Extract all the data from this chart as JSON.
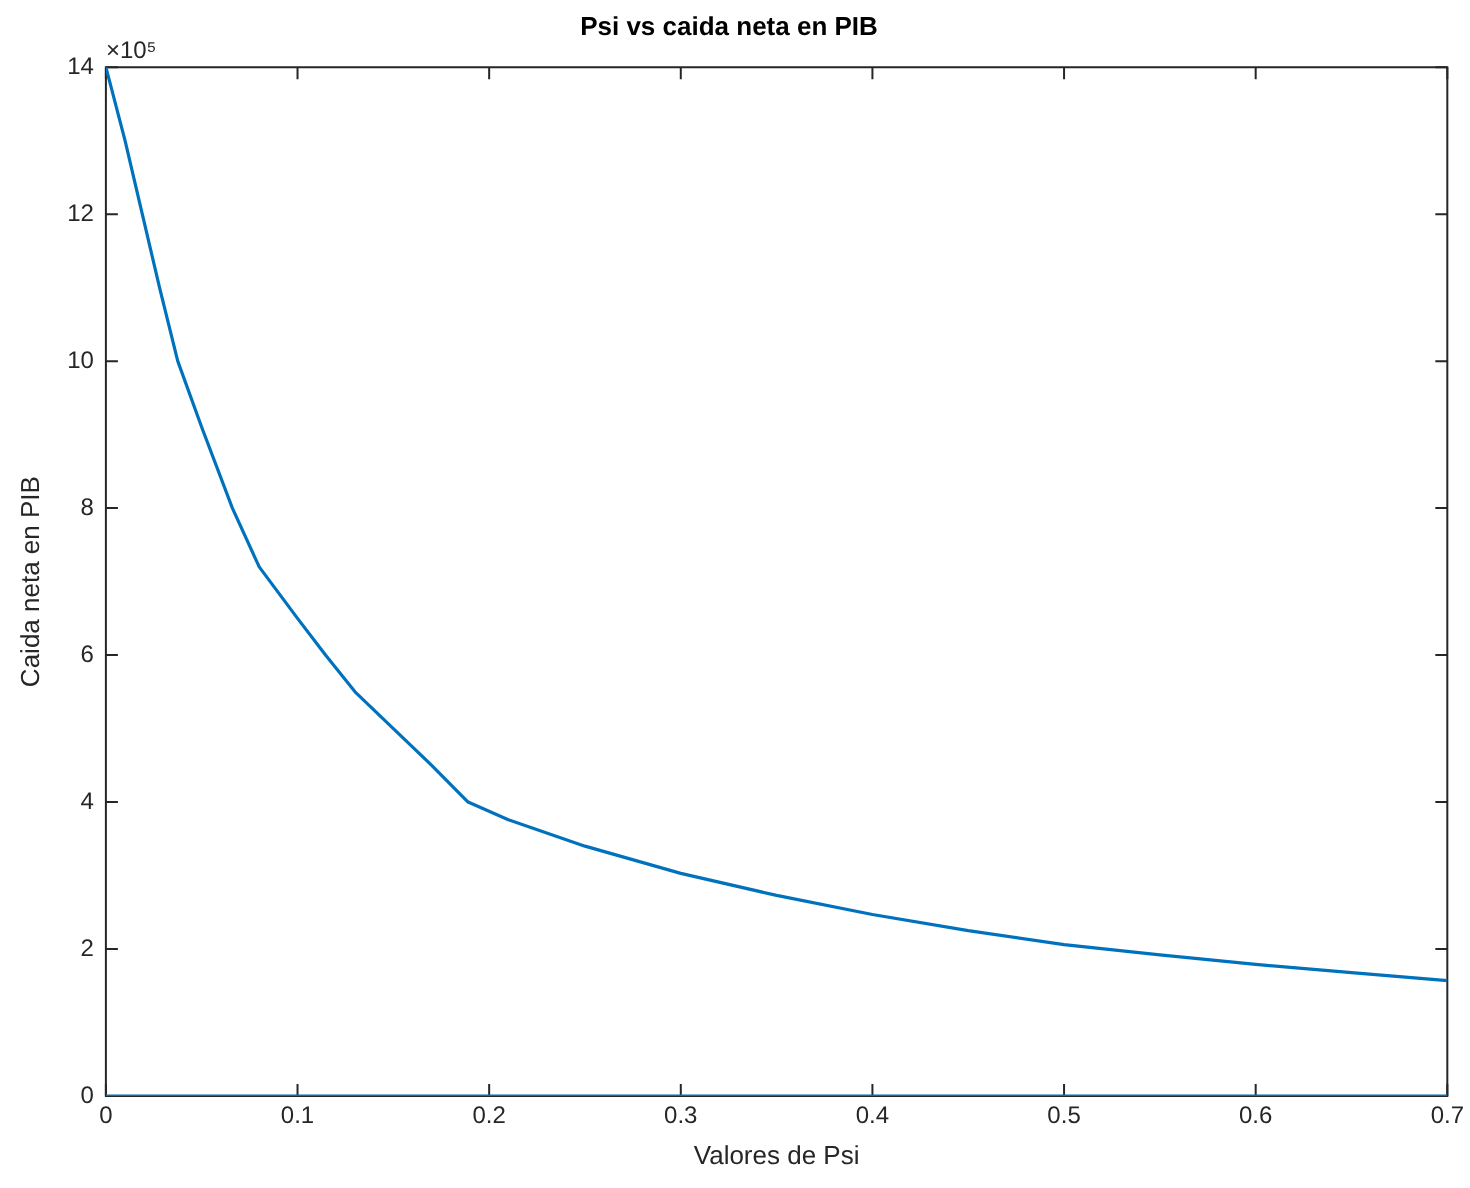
{
  "chart_data": {
    "type": "line",
    "title": "Psi vs caida neta en PIB",
    "xlabel": "Valores de Psi",
    "ylabel": "Caida neta en PIB",
    "annotations": [
      "×10⁵"
    ],
    "xlim": [
      0,
      0.7
    ],
    "xticks": [
      0,
      0.1,
      0.2,
      0.3,
      0.4,
      0.5,
      0.6,
      0.7
    ],
    "ylim": [
      0,
      14
    ],
    "yticks": [
      0,
      2,
      4,
      6,
      8,
      10,
      12,
      14
    ],
    "grid": false,
    "legend": false,
    "marker": "none",
    "line_style": "solid",
    "series": [
      {
        "color": "#0072bd",
        "x": [
          0,
          0.01,
          0.019,
          0.028,
          0.0375,
          0.05,
          0.066,
          0.08,
          0.1,
          0.1146,
          0.13,
          0.15,
          0.17,
          0.189,
          0.21,
          0.25,
          0.3,
          0.35,
          0.4,
          0.45,
          0.5,
          0.55,
          0.6,
          0.65,
          0.7
        ],
        "values": [
          14,
          13,
          12,
          11,
          10,
          9.1,
          8,
          7.2,
          6.5,
          6,
          5.5,
          5,
          4.5,
          4,
          3.76,
          3.4,
          3.03,
          2.73,
          2.47,
          2.25,
          2.06,
          1.92,
          1.79,
          1.68,
          1.57
        ]
      },
      {
        "color": "#0072bd",
        "x": [
          0,
          0.7
        ],
        "values": [
          0,
          0
        ]
      }
    ]
  }
}
